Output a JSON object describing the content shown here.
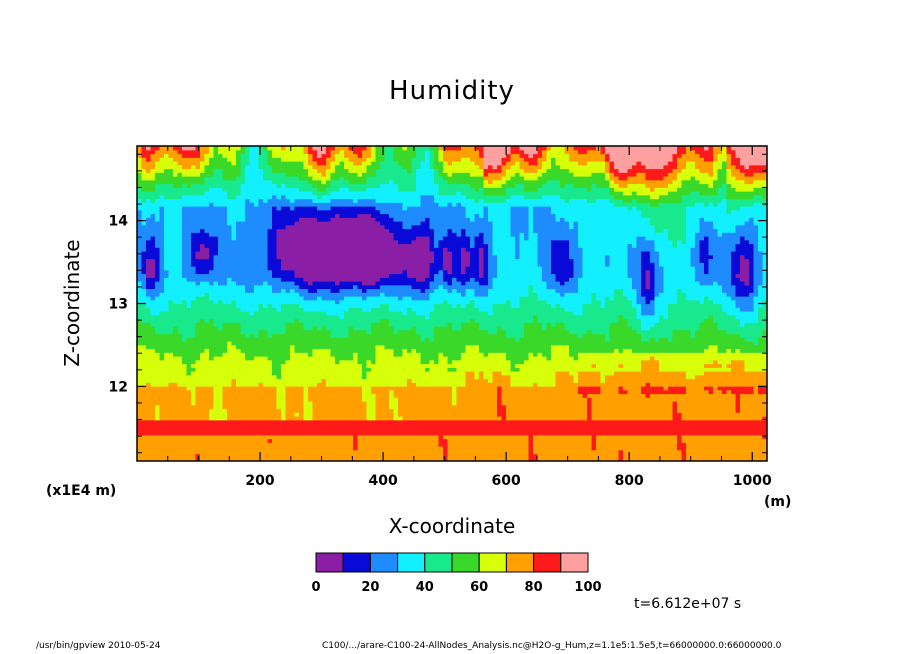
{
  "chart_data": {
    "type": "heatmap",
    "title": "Humidity",
    "xlabel": "X-coordinate",
    "ylabel": "Z-coordinate",
    "x_unit": "(m)",
    "y_unit": "(x1E4 m)",
    "xlim": [
      0,
      1024
    ],
    "ylim": [
      11.1,
      14.9
    ],
    "x_ticks": [
      200,
      400,
      600,
      800,
      1000
    ],
    "y_ticks": [
      12,
      13,
      14
    ],
    "colorbar": {
      "levels": [
        0,
        10,
        20,
        30,
        40,
        50,
        60,
        70,
        80,
        90,
        100
      ],
      "tick_labels": [
        "0",
        "20",
        "40",
        "60",
        "80",
        "100"
      ],
      "colors": [
        "#8a1fa6",
        "#0a0ad8",
        "#1e8cff",
        "#12f0ff",
        "#18e98c",
        "#3ad828",
        "#d8ff0a",
        "#ffa000",
        "#ff1a1a",
        "#ffa0a0"
      ]
    },
    "annotation": "t=6.612e+07 s"
  },
  "footer": {
    "left": "/usr/bin/gpview  2010-05-24",
    "right": "C100/.../arare-C100-24-AllNodes_Analysis.nc@H2O-g_Hum,z=1.1e5:1.5e5,t=66000000.0:66000000.0"
  }
}
